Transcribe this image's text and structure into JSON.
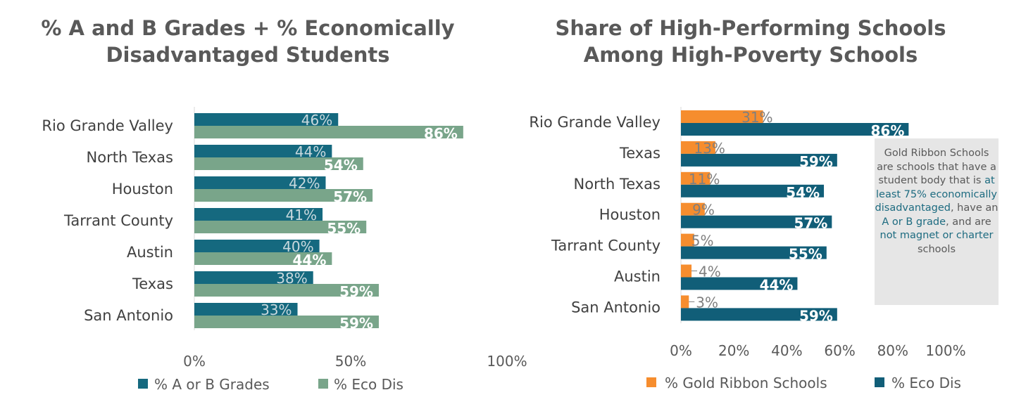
{
  "colors": {
    "ab": "#15697f",
    "eco_left": "#79a58a",
    "gold": "#f68d2e",
    "eco_right": "#115e78",
    "note_bg": "#e6e6e6",
    "note_hl": "#1d6b80"
  },
  "chart_data": [
    {
      "type": "bar",
      "orientation": "horizontal",
      "title": [
        "% A and B Grades + % Economically",
        "Disadvantaged Students"
      ],
      "categories": [
        "Rio Grande Valley",
        "North Texas",
        "Houston",
        "Tarrant County",
        "Austin",
        "Texas",
        "San Antonio"
      ],
      "series": [
        {
          "name": "% A or B Grades",
          "values": [
            46,
            44,
            42,
            41,
            40,
            38,
            33
          ]
        },
        {
          "name": "% Eco Dis",
          "values": [
            86,
            54,
            57,
            55,
            44,
            59,
            59
          ]
        }
      ],
      "xlim": [
        0,
        100
      ],
      "xticks": [
        "0%",
        "50%",
        "100%"
      ],
      "legend": "bottom"
    },
    {
      "type": "bar",
      "orientation": "horizontal",
      "title": [
        "Share of High-Performing Schools",
        "Among High-Poverty Schools"
      ],
      "categories": [
        "Rio Grande Valley",
        "Texas",
        "North Texas",
        "Houston",
        "Tarrant County",
        "Austin",
        "San Antonio"
      ],
      "series": [
        {
          "name": "% Gold Ribbon Schools",
          "values": [
            31,
            13,
            11,
            9,
            5,
            4,
            3
          ]
        },
        {
          "name": "% Eco Dis",
          "values": [
            86,
            59,
            54,
            57,
            55,
            44,
            59
          ]
        }
      ],
      "xlim": [
        0,
        100
      ],
      "xticks": [
        "0%",
        "20%",
        "40%",
        "60%",
        "80%",
        "100%"
      ],
      "legend": "bottom"
    }
  ],
  "note": {
    "p1": "Gold Ribbon Schools are schools that have a student body that is ",
    "h1": "at least 75% economically disadvantaged",
    "p2": ", have an ",
    "h2": "A or B grade",
    "p3": ", and are ",
    "h3": "not magnet or charter",
    "p4": " schools"
  }
}
